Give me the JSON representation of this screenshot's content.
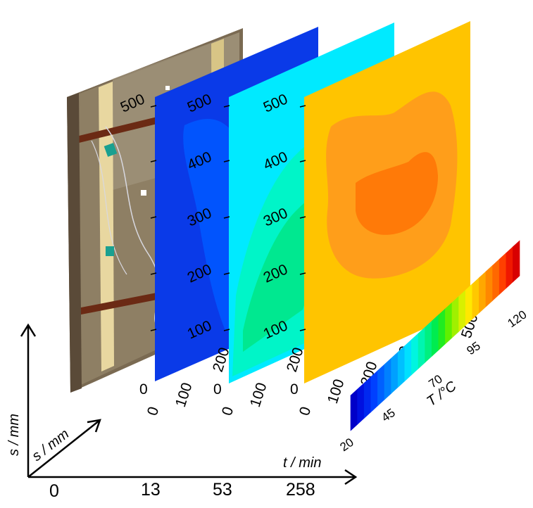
{
  "axes": {
    "vertical_label": "s / mm",
    "depth_label": "s / mm",
    "time_label": "t / min",
    "time_ticks": [
      "0",
      "13",
      "53",
      "258"
    ]
  },
  "panels": [
    {
      "name": "photo",
      "time": "0"
    },
    {
      "name": "t13",
      "time": "13",
      "y_ticks": [
        "100",
        "200",
        "300",
        "400",
        "500"
      ],
      "x_ticks": [
        "0",
        "100",
        "200"
      ],
      "corner": "0",
      "base_color": "#0a3ae8",
      "region_color": "#0058ff"
    },
    {
      "name": "t53",
      "time": "53",
      "y_ticks": [
        "100",
        "200",
        "300",
        "400",
        "500"
      ],
      "x_ticks": [
        "0",
        "100",
        "200"
      ],
      "corner": "0",
      "base_color": "#00eaff",
      "region_colors": [
        "#00f5c8",
        "#00e890"
      ]
    },
    {
      "name": "t258",
      "time": "258",
      "y_ticks": [
        "100",
        "200",
        "300",
        "400",
        "500"
      ],
      "x_ticks": [
        "0",
        "100",
        "200",
        "300",
        "400",
        "500"
      ],
      "corner": "0",
      "base_color": "#ffc400",
      "region_colors": [
        "#ff9e1a",
        "#ff7a08"
      ]
    }
  ],
  "colorbar": {
    "label": "T /°C",
    "ticks": [
      "20",
      "45",
      "70",
      "95",
      "120"
    ],
    "colors": [
      "#0000c8",
      "#0010e0",
      "#0028f0",
      "#0040ff",
      "#0060ff",
      "#0080ff",
      "#00a0ff",
      "#00c0ff",
      "#00e0ff",
      "#00f5e0",
      "#00f5b0",
      "#00f080",
      "#00ec50",
      "#20ec20",
      "#60f000",
      "#a0f000",
      "#d8f000",
      "#ffe800",
      "#ffc800",
      "#ffa800",
      "#ff8800",
      "#ff6800",
      "#ff4000",
      "#f01800",
      "#d80000"
    ]
  }
}
